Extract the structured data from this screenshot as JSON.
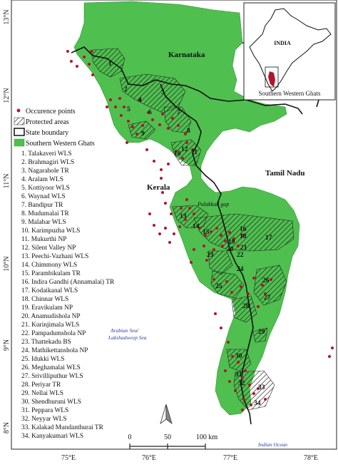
{
  "map": {
    "lat_labels": [
      "13°N",
      "12°N",
      "11°N",
      "10°N",
      "9°N",
      "8°N"
    ],
    "lon_labels": [
      "75°E",
      "76°E",
      "77°E",
      "78°E"
    ],
    "state_labels": {
      "karnataka": "Karnataka",
      "kerala": "Kerala",
      "tamil_nadu": "Tamil Nadu"
    },
    "gap_label": "Palakkad gap",
    "sea_labels": {
      "arabian_line1": "Arabian Sea/",
      "arabian_line2": "Lakshadweep Sea",
      "indian": "Indian Ocean"
    },
    "scale_bar": {
      "ticks": [
        "0",
        "50",
        "100 km"
      ]
    },
    "colors": {
      "western_ghats": "#4fbf4f",
      "occurrence": "#b0152a",
      "protected_hatch": "#1a1a1a"
    }
  },
  "legend": {
    "items": [
      {
        "label": "Occurence points",
        "symbol": "dot"
      },
      {
        "label": "Protected areas",
        "symbol": "hatch"
      },
      {
        "label": "State boundary",
        "symbol": "outline"
      },
      {
        "label": "Southern Western Ghats",
        "symbol": "green"
      }
    ]
  },
  "protected_areas": [
    "1. Talakaveri WLS",
    "2. Brahmagiri WLS",
    "3. Nagarahole TR",
    "4. Aralam WLS",
    "5. Kottiyoor WLS",
    "6. Waynad WLS",
    "7. Bandipur TR",
    "8. Mudumalai TR",
    "9. Malabar WLS",
    "10. Karimpuzha  WLS",
    "11. Mukurthi NP",
    "12. Silent Valley NP",
    "13. Peechi-Vazhani WLS",
    "14. Chimmony WLS",
    "15. Parambikulam TR",
    "16. Indira Gandhi (Annamalai) TR",
    "17. Kodaikanal WLS",
    "18. Chinnar WLS",
    "19. Eravikulam NP",
    "20. Anamudishola NP",
    "21. Kurinjimala WLS",
    "22. Pampadumshola NP",
    "23. Thattekadu BS",
    "24. Mathikettanshola NP",
    "25. Idukki WLS",
    "26. Meghamalai WLS",
    "27. Srivilliputhur WLS",
    "28. Periyar TR",
    "29. Nellai WLS",
    "30. Shendhuruni WLS",
    "31. Peppara WLS",
    "32. Neyyar WLS",
    "33. Kalakad Mundanthurai TR",
    "34. Kanyakumari WLS"
  ],
  "pa_numbers": [
    "1",
    "2",
    "3",
    "4",
    "5",
    "6",
    "7",
    "8",
    "9",
    "10",
    "11",
    "12",
    "13",
    "14",
    "15",
    "16",
    "17",
    "18",
    "19",
    "20",
    "21",
    "22",
    "23",
    "24",
    "25",
    "26",
    "27",
    "28",
    "29",
    "30",
    "31",
    "32",
    "33",
    "34"
  ],
  "inset": {
    "country_label": "INDIA",
    "caption": "Southern Western Ghats"
  }
}
